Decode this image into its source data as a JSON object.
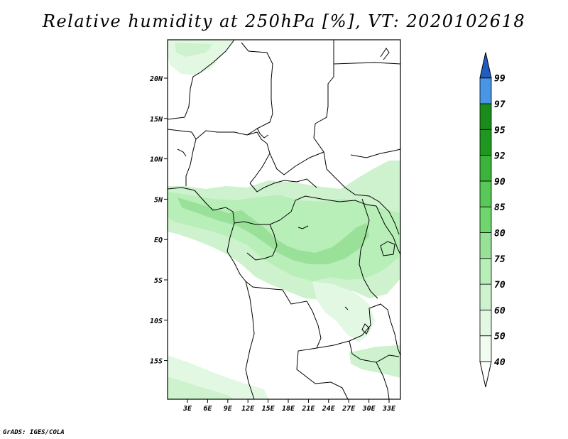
{
  "title": "Relative humidity at 250hPa [%], VT: 2020102618",
  "credit": "GrADS: IGES/COLA",
  "x_ticks": [
    "3E",
    "6E",
    "9E",
    "12E",
    "15E",
    "18E",
    "21E",
    "24E",
    "27E",
    "30E",
    "33E"
  ],
  "y_ticks": [
    "20N",
    "15N",
    "10N",
    "5N",
    "EQ",
    "5S",
    "10S",
    "15S"
  ],
  "colorbar": {
    "levels": [
      "40",
      "50",
      "60",
      "70",
      "75",
      "80",
      "85",
      "90",
      "92",
      "95",
      "97",
      "99"
    ],
    "colors": [
      "#f0fcf0",
      "#e3f8e3",
      "#cdf2cd",
      "#b8eeb8",
      "#99e099",
      "#6fd66f",
      "#58c858",
      "#3cb43c",
      "#209820",
      "#1a8c1a",
      "#4a96e6",
      "#2575d6",
      "#1f5dbe"
    ]
  }
}
